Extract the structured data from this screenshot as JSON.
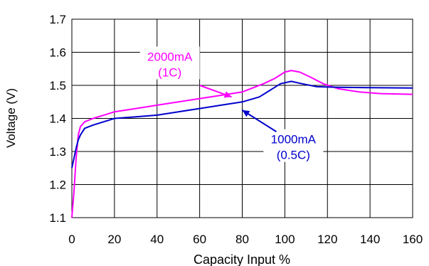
{
  "chart_data": {
    "type": "line",
    "title": "",
    "xlabel": "Capacity Input %",
    "ylabel": "Voltage (V)",
    "xlim": [
      0,
      160
    ],
    "ylim": [
      1.1,
      1.7
    ],
    "x_ticks": [
      "0",
      "20",
      "40",
      "60",
      "80",
      "100",
      "120",
      "140",
      "160"
    ],
    "y_ticks": [
      "1.1",
      "1.2",
      "1.3",
      "1.4",
      "1.5",
      "1.6",
      "1.7"
    ],
    "grid": true,
    "series": [
      {
        "name": "2000mA (1C)",
        "color": "#ff00ff",
        "points": [
          [
            0,
            1.1
          ],
          [
            1,
            1.18
          ],
          [
            2,
            1.28
          ],
          [
            3,
            1.35
          ],
          [
            4,
            1.375
          ],
          [
            6,
            1.39
          ],
          [
            10,
            1.4
          ],
          [
            15,
            1.41
          ],
          [
            20,
            1.42
          ],
          [
            30,
            1.43
          ],
          [
            40,
            1.44
          ],
          [
            50,
            1.45
          ],
          [
            60,
            1.46
          ],
          [
            70,
            1.47
          ],
          [
            80,
            1.48
          ],
          [
            90,
            1.505
          ],
          [
            95,
            1.52
          ],
          [
            100,
            1.54
          ],
          [
            103,
            1.545
          ],
          [
            107,
            1.54
          ],
          [
            112,
            1.525
          ],
          [
            118,
            1.505
          ],
          [
            125,
            1.49
          ],
          [
            135,
            1.48
          ],
          [
            145,
            1.475
          ],
          [
            160,
            1.473
          ]
        ]
      },
      {
        "name": "1000mA (0.5C)",
        "color": "#0000cc",
        "points": [
          [
            0,
            1.25
          ],
          [
            1,
            1.28
          ],
          [
            2,
            1.31
          ],
          [
            3,
            1.335
          ],
          [
            4,
            1.35
          ],
          [
            6,
            1.37
          ],
          [
            10,
            1.38
          ],
          [
            15,
            1.39
          ],
          [
            20,
            1.4
          ],
          [
            30,
            1.405
          ],
          [
            40,
            1.41
          ],
          [
            50,
            1.42
          ],
          [
            60,
            1.43
          ],
          [
            70,
            1.44
          ],
          [
            80,
            1.45
          ],
          [
            88,
            1.465
          ],
          [
            93,
            1.485
          ],
          [
            98,
            1.505
          ],
          [
            103,
            1.512
          ],
          [
            108,
            1.505
          ],
          [
            115,
            1.496
          ],
          [
            125,
            1.494
          ],
          [
            140,
            1.493
          ],
          [
            160,
            1.492
          ]
        ]
      }
    ],
    "annotations": [
      {
        "line1": "2000mA",
        "line2": "(1C)",
        "color": "#ff00ff",
        "text_at": [
          46,
          1.57
        ],
        "arrow_from": [
          60,
          1.5
        ],
        "arrow_to": [
          75,
          1.465
        ]
      },
      {
        "line1": "1000mA",
        "line2": "(0.5C)",
        "color": "#0000cc",
        "text_at": [
          104,
          1.32
        ],
        "arrow_from": [
          96,
          1.36
        ],
        "arrow_to": [
          80,
          1.425
        ]
      }
    ]
  }
}
